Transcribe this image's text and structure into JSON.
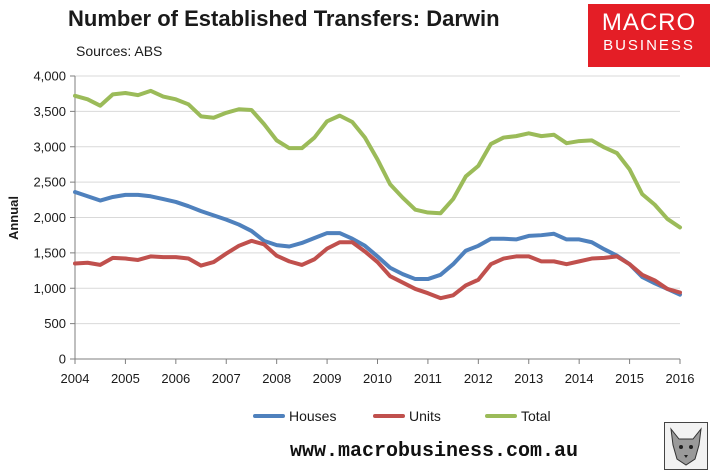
{
  "header": {
    "title": "Number of Established Transfers: Darwin",
    "subtitle": "Sources: ABS"
  },
  "logo": {
    "line1": "MACRO",
    "line2": "BUSINESS",
    "color": "#e41e26"
  },
  "footer": {
    "url": "www.macrobusiness.com.au"
  },
  "chart_data": {
    "type": "line",
    "title": "Number of Established Transfers: Darwin",
    "ylabel": "Annual",
    "xlabel": "",
    "ylim": [
      0,
      4000
    ],
    "xlim": [
      2004,
      2016
    ],
    "yticks": [
      "0",
      "500",
      "1,000",
      "1,500",
      "2,000",
      "2,500",
      "3,000",
      "3,500",
      "4,000"
    ],
    "xticks": [
      "2004",
      "2005",
      "2006",
      "2007",
      "2008",
      "2009",
      "2010",
      "2011",
      "2012",
      "2013",
      "2014",
      "2015",
      "2016"
    ],
    "grid": true,
    "legend_position": "bottom",
    "x": [
      2004.0,
      2004.25,
      2004.5,
      2004.75,
      2005.0,
      2005.25,
      2005.5,
      2005.75,
      2006.0,
      2006.25,
      2006.5,
      2006.75,
      2007.0,
      2007.25,
      2007.5,
      2007.75,
      2008.0,
      2008.25,
      2008.5,
      2008.75,
      2009.0,
      2009.25,
      2009.5,
      2009.75,
      2010.0,
      2010.25,
      2010.5,
      2010.75,
      2011.0,
      2011.25,
      2011.5,
      2011.75,
      2012.0,
      2012.25,
      2012.5,
      2012.75,
      2013.0,
      2013.25,
      2013.5,
      2013.75,
      2014.0,
      2014.25,
      2014.5,
      2014.75,
      2015.0,
      2015.25,
      2015.5,
      2015.75,
      2016.0
    ],
    "series": [
      {
        "name": "Houses",
        "color": "#4f81bd",
        "values": [
          2360,
          2300,
          2240,
          2290,
          2320,
          2320,
          2300,
          2260,
          2220,
          2160,
          2090,
          2030,
          1970,
          1900,
          1810,
          1670,
          1610,
          1590,
          1640,
          1710,
          1780,
          1780,
          1700,
          1600,
          1450,
          1290,
          1200,
          1130,
          1130,
          1190,
          1340,
          1530,
          1600,
          1700,
          1700,
          1690,
          1740,
          1750,
          1770,
          1690,
          1690,
          1650,
          1550,
          1460,
          1340,
          1160,
          1070,
          990,
          910
        ]
      },
      {
        "name": "Units",
        "color": "#c0504d",
        "values": [
          1350,
          1360,
          1330,
          1430,
          1420,
          1400,
          1450,
          1440,
          1440,
          1420,
          1320,
          1370,
          1490,
          1600,
          1670,
          1620,
          1460,
          1380,
          1330,
          1410,
          1560,
          1650,
          1650,
          1520,
          1370,
          1170,
          1080,
          990,
          930,
          860,
          900,
          1040,
          1120,
          1340,
          1420,
          1450,
          1450,
          1380,
          1380,
          1340,
          1380,
          1420,
          1430,
          1450,
          1340,
          1190,
          1110,
          990,
          940
        ]
      },
      {
        "name": "Total",
        "color": "#9bbb59",
        "values": [
          3720,
          3670,
          3580,
          3740,
          3760,
          3730,
          3790,
          3710,
          3670,
          3600,
          3430,
          3410,
          3480,
          3530,
          3520,
          3320,
          3090,
          2980,
          2980,
          3130,
          3360,
          3440,
          3350,
          3130,
          2820,
          2470,
          2280,
          2110,
          2070,
          2060,
          2260,
          2580,
          2730,
          3040,
          3130,
          3150,
          3190,
          3150,
          3170,
          3050,
          3080,
          3090,
          2990,
          2910,
          2680,
          2330,
          2180,
          1980,
          1860
        ]
      }
    ]
  }
}
